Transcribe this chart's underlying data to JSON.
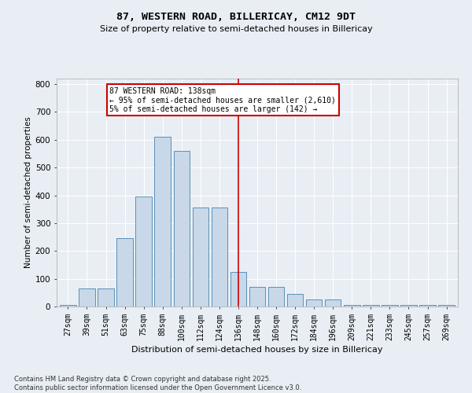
{
  "title_line1": "87, WESTERN ROAD, BILLERICAY, CM12 9DT",
  "title_line2": "Size of property relative to semi-detached houses in Billericay",
  "xlabel": "Distribution of semi-detached houses by size in Billericay",
  "ylabel": "Number of semi-detached properties",
  "categories": [
    "27sqm",
    "39sqm",
    "51sqm",
    "63sqm",
    "75sqm",
    "88sqm",
    "100sqm",
    "112sqm",
    "124sqm",
    "136sqm",
    "148sqm",
    "160sqm",
    "172sqm",
    "184sqm",
    "196sqm",
    "209sqm",
    "221sqm",
    "233sqm",
    "245sqm",
    "257sqm",
    "269sqm"
  ],
  "values": [
    5,
    65,
    65,
    245,
    395,
    610,
    560,
    355,
    355,
    125,
    70,
    70,
    45,
    25,
    25,
    5,
    5,
    5,
    5,
    5,
    5
  ],
  "bar_color": "#c8d8e8",
  "bar_edge_color": "#5a90b8",
  "vline_x_index": 9,
  "vline_color": "#cc0000",
  "annotation_title": "87 WESTERN ROAD: 138sqm",
  "annotation_line1": "← 95% of semi-detached houses are smaller (2,610)",
  "annotation_line2": "5% of semi-detached houses are larger (142) →",
  "annotation_box_color": "#cc0000",
  "annotation_bg": "#ffffff",
  "ylim": [
    0,
    820
  ],
  "yticks": [
    0,
    100,
    200,
    300,
    400,
    500,
    600,
    700,
    800
  ],
  "footer_line1": "Contains HM Land Registry data © Crown copyright and database right 2025.",
  "footer_line2": "Contains public sector information licensed under the Open Government Licence v3.0.",
  "bg_color": "#e8eef4",
  "plot_bg_color": "#e8eef4"
}
